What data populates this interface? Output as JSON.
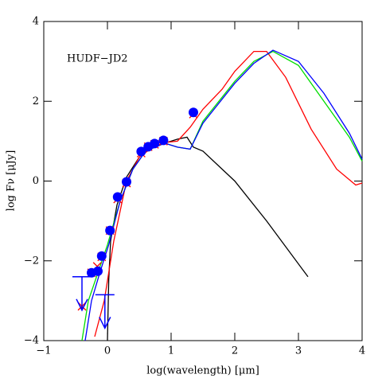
{
  "chart_data": {
    "type": "line",
    "annotation": "HUDF−JD2",
    "x_label": "log(wavelength) [μm]",
    "y_label": "log Fν [μJy]",
    "xlim": [
      -1,
      4
    ],
    "ylim": [
      -4,
      4
    ],
    "xticks": [
      {
        "value": -1,
        "label": "−1"
      },
      0,
      1,
      2,
      3,
      4
    ],
    "yticks": [
      {
        "value": -4,
        "label": "−4"
      },
      {
        "value": -2,
        "label": "−2"
      },
      0,
      2,
      4
    ],
    "series": [
      {
        "name": "black model",
        "color": "#000000",
        "marker": "line",
        "x": [
          0.0,
          0.02,
          0.05,
          0.15,
          0.3,
          0.5,
          0.7,
          0.9,
          1.1,
          1.25,
          1.35,
          1.5,
          2.0,
          2.5,
          3.15
        ],
        "values": [
          -4,
          -2.5,
          -1.5,
          -0.6,
          0.1,
          0.6,
          0.85,
          0.95,
          1.05,
          1.1,
          0.85,
          0.75,
          0,
          -1,
          -2.4
        ]
      },
      {
        "name": "red model",
        "color": "#ff0000",
        "marker": "line",
        "x": [
          -0.2,
          -0.05,
          0.1,
          0.3,
          0.5,
          0.8,
          1.1,
          1.3,
          1.5,
          1.8,
          2.0,
          2.3,
          2.5,
          2.8,
          3.2,
          3.6,
          3.9,
          4.0
        ],
        "values": [
          -3.9,
          -3,
          -1.5,
          0,
          0.6,
          0.95,
          1.0,
          1.35,
          1.8,
          2.3,
          2.75,
          3.25,
          3.25,
          2.6,
          1.3,
          0.3,
          -0.1,
          -0.05
        ]
      },
      {
        "name": "green model",
        "color": "#00dd00",
        "marker": "line",
        "x": [
          -0.4,
          -0.3,
          -0.15,
          0,
          0.2,
          0.4,
          0.6,
          0.9,
          1.1,
          1.3,
          1.5,
          1.7,
          2.0,
          2.3,
          2.6,
          3.0,
          3.4,
          3.8,
          4.0
        ],
        "values": [
          -4,
          -3,
          -2.3,
          -1.6,
          -0.5,
          0.3,
          0.75,
          0.95,
          0.85,
          0.8,
          1.5,
          1.9,
          2.5,
          3.0,
          3.25,
          2.9,
          2.0,
          1.1,
          0.5
        ]
      },
      {
        "name": "blue model",
        "color": "#0000ff",
        "marker": "line",
        "x": [
          -0.35,
          -0.25,
          -0.12,
          0.02,
          0.2,
          0.4,
          0.6,
          0.9,
          1.1,
          1.3,
          1.5,
          1.7,
          2.0,
          2.3,
          2.6,
          3.0,
          3.4,
          3.8,
          4.0
        ],
        "values": [
          -4,
          -3,
          -2.3,
          -1.6,
          -0.5,
          0.3,
          0.75,
          0.95,
          0.85,
          0.8,
          1.45,
          1.85,
          2.45,
          2.95,
          3.28,
          3.0,
          2.2,
          1.2,
          0.55
        ]
      },
      {
        "name": "model fluxes",
        "color": "#ff0000",
        "marker": "cross",
        "x": [
          -0.4,
          -0.25,
          -0.16,
          -0.09,
          0.04,
          0.16,
          0.3,
          0.53,
          0.64,
          0.74,
          0.88,
          1.35
        ],
        "values": [
          -3.14,
          -2.3,
          -2.14,
          -1.9,
          -1.24,
          -0.45,
          -0.05,
          0.7,
          0.86,
          0.92,
          1.0,
          1.68
        ]
      },
      {
        "name": "observed fluxes",
        "color": "#0000ff",
        "marker": "circle",
        "x": [
          -0.25,
          -0.15,
          -0.09,
          0.04,
          0.16,
          0.3,
          0.53,
          0.64,
          0.74,
          0.88,
          1.35
        ],
        "values": [
          -2.3,
          -2.26,
          -1.88,
          -1.24,
          -0.4,
          -0.02,
          0.74,
          0.86,
          0.94,
          1.02,
          1.72
        ]
      },
      {
        "name": "upper limits",
        "color": "#0000ff",
        "marker": "upper_limit",
        "x": [
          -0.4,
          -0.04
        ],
        "values": [
          -2.4,
          -2.85
        ]
      }
    ]
  }
}
